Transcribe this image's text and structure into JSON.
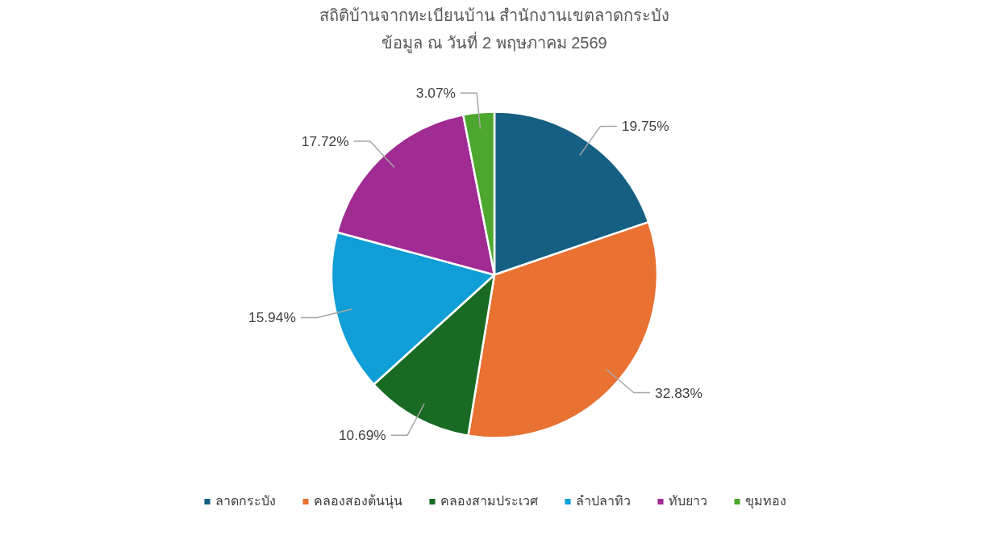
{
  "chart_data": {
    "type": "pie",
    "title": "สถิติบ้านจากทะเบียนบ้าน สำนักงานเขตลาดกระบัง",
    "subtitle": "ข้อมูล ณ วันที่ 2 พฤษภาคม 2569",
    "categories": [
      "ลาดกระบัง",
      "คลองสองต้นนุ่น",
      "คลองสามประเวศ",
      "ลำปลาทิว",
      "ทับยาว",
      "ขุมทอง"
    ],
    "values": [
      19.75,
      32.83,
      10.69,
      15.94,
      17.72,
      3.07
    ],
    "value_labels": [
      "19.75%",
      "32.83%",
      "10.69%",
      "15.94%",
      "17.72%",
      "3.07%"
    ],
    "colors": [
      "#156082",
      "#e97132",
      "#196b24",
      "#0f9ed5",
      "#a02b93",
      "#4ea72e"
    ],
    "legend": "bottom"
  }
}
